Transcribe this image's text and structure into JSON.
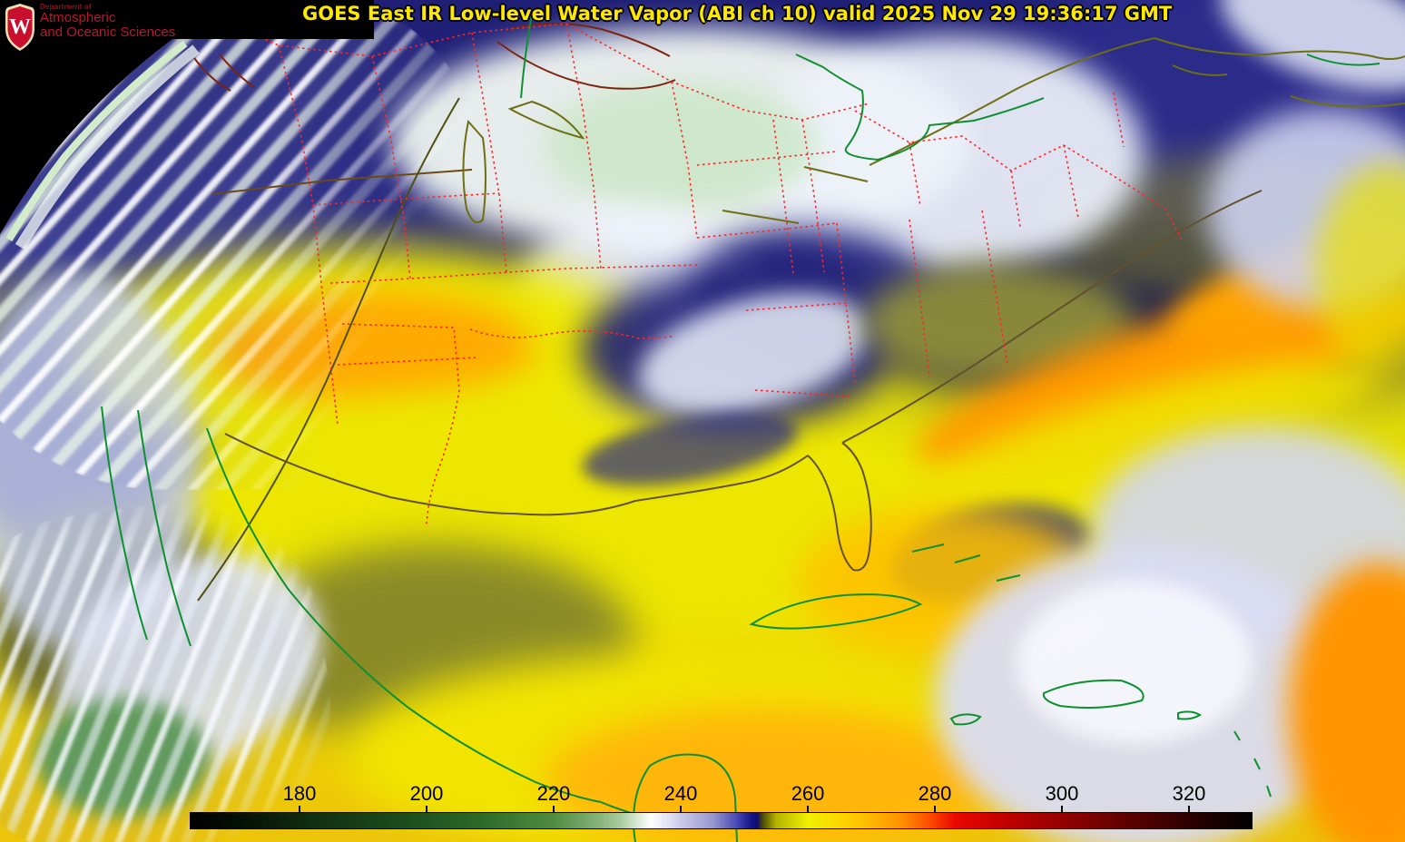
{
  "title": {
    "text": "GOES East IR Low-level Water Vapor (ABI ch 10) valid 2025 Nov 29 19:36:17 GMT",
    "color": "#ffe800"
  },
  "logo": {
    "department_line": "Department of",
    "name_line1": "Atmospheric",
    "name_line2": "and Oceanic Sciences",
    "crest_letter": "W",
    "crest_red": "#c8102e",
    "text_red": "#b5182e"
  },
  "colorbar": {
    "tick_labels": [
      "180",
      "200",
      "220",
      "240",
      "260",
      "280",
      "300",
      "320"
    ],
    "tick_positions_pct": [
      10.33,
      22.29,
      34.24,
      46.2,
      58.16,
      70.11,
      82.07,
      94.02
    ],
    "value_min": 163,
    "value_max": 330,
    "gradient": [
      {
        "pct": 0,
        "color": "#000000"
      },
      {
        "pct": 6,
        "color": "#071607"
      },
      {
        "pct": 10.3,
        "color": "#0e2a0e"
      },
      {
        "pct": 16,
        "color": "#173f17"
      },
      {
        "pct": 22.3,
        "color": "#1f541f"
      },
      {
        "pct": 28,
        "color": "#2f6d2a"
      },
      {
        "pct": 34.2,
        "color": "#4f8c41"
      },
      {
        "pct": 38,
        "color": "#7fae73"
      },
      {
        "pct": 40.5,
        "color": "#aacb9f"
      },
      {
        "pct": 43.4,
        "color": "#ffffff"
      },
      {
        "pct": 46.2,
        "color": "#cbcbe9"
      },
      {
        "pct": 49.2,
        "color": "#9898d0"
      },
      {
        "pct": 51.5,
        "color": "#4747b5"
      },
      {
        "pct": 52.8,
        "color": "#16168c"
      },
      {
        "pct": 53.4,
        "color": "#0d0d70"
      },
      {
        "pct": 53.9,
        "color": "#4a4a08"
      },
      {
        "pct": 55.2,
        "color": "#b4b400"
      },
      {
        "pct": 58.2,
        "color": "#f0f000"
      },
      {
        "pct": 61,
        "color": "#fdd800"
      },
      {
        "pct": 63.5,
        "color": "#ffc000"
      },
      {
        "pct": 67.2,
        "color": "#ff8c00"
      },
      {
        "pct": 69.5,
        "color": "#ff5000"
      },
      {
        "pct": 72,
        "color": "#ea0800"
      },
      {
        "pct": 76,
        "color": "#c80000"
      },
      {
        "pct": 82,
        "color": "#960000"
      },
      {
        "pct": 88,
        "color": "#600000"
      },
      {
        "pct": 94,
        "color": "#2e0000"
      },
      {
        "pct": 100,
        "color": "#000000"
      }
    ]
  },
  "map": {
    "boundary_colors": {
      "state_borders_dotted": "#ff2626",
      "canada_border_brown": "#6b4a14",
      "canada_border_green": "#0f8f30",
      "gulf_atlantic_coast": "#63512e",
      "pacific_coast": "#4f4f10",
      "great_lakes": "#6e6e12",
      "northern_lakes": "#7c2410",
      "mexico_caribbean_coasts": "#0c9130"
    },
    "palette": {
      "space_black": "#000000",
      "earth_limb_green": "#d2ebcb",
      "dry_upper_navy": "#1d1d74",
      "driest_band": "#101050",
      "cloud_white": "#eef2fa",
      "cloud_green_tint": "#c8e6c3",
      "moist_yellow": "#f2ee00",
      "very_moist_orange": "#ff9800",
      "deep_convection_green": "#5f9e52"
    }
  }
}
